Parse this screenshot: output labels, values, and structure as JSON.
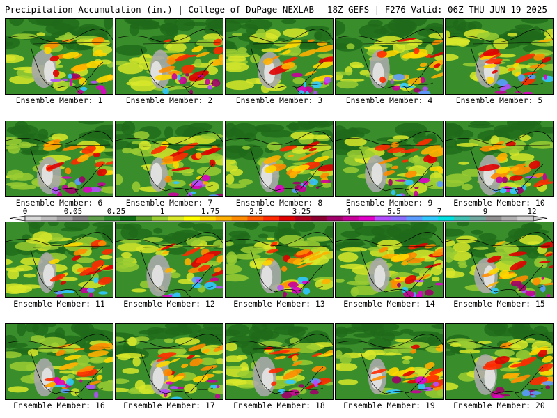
{
  "header": {
    "title": "Precipitation Accumulation (in.) | College of DuPage NEXLAB",
    "run_info": "18Z GEFS | F276 Valid: 06Z THU JUN 19 2025"
  },
  "panels": [
    {
      "label": "Ensemble Member: 1"
    },
    {
      "label": "Ensemble Member: 2"
    },
    {
      "label": "Ensemble Member: 3"
    },
    {
      "label": "Ensemble Member: 4"
    },
    {
      "label": "Ensemble Member: 5"
    },
    {
      "label": "Ensemble Member: 6"
    },
    {
      "label": "Ensemble Member: 7"
    },
    {
      "label": "Ensemble Member: 8"
    },
    {
      "label": "Ensemble Member: 9"
    },
    {
      "label": "Ensemble Member: 10"
    },
    {
      "label": "Ensemble Member: 11"
    },
    {
      "label": "Ensemble Member: 12"
    },
    {
      "label": "Ensemble Member: 13"
    },
    {
      "label": "Ensemble Member: 14"
    },
    {
      "label": "Ensemble Member: 15"
    },
    {
      "label": "Ensemble Member: 16"
    },
    {
      "label": "Ensemble Member: 17"
    },
    {
      "label": "Ensemble Member: 18"
    },
    {
      "label": "Ensemble Member: 19"
    },
    {
      "label": "Ensemble Member: 20"
    }
  ],
  "colorbar": {
    "tick_labels": [
      "0",
      "0.05",
      "0.25",
      "1",
      "1.75",
      "2.5",
      "3.25",
      "4",
      "5.5",
      "7",
      "9",
      "12"
    ],
    "colors": [
      "#d9d9d9",
      "#bdbdbd",
      "#a0a0a0",
      "#7c7c7c",
      "#5f9e4a",
      "#2e8b2e",
      "#0f6e14",
      "#5aa02c",
      "#9acd32",
      "#d8e82a",
      "#ffff00",
      "#ffd700",
      "#ffb000",
      "#ff8c00",
      "#ff5a00",
      "#ff2a00",
      "#e00000",
      "#b00020",
      "#8b0030",
      "#a0006a",
      "#c8009a",
      "#e000c8",
      "#b44cff",
      "#8a6cff",
      "#5a9cff",
      "#30c8ff",
      "#00e0e0",
      "#40c0b0",
      "#70a8a0",
      "#909090",
      "#b0b0b0",
      "#d0d0d0"
    ]
  }
}
